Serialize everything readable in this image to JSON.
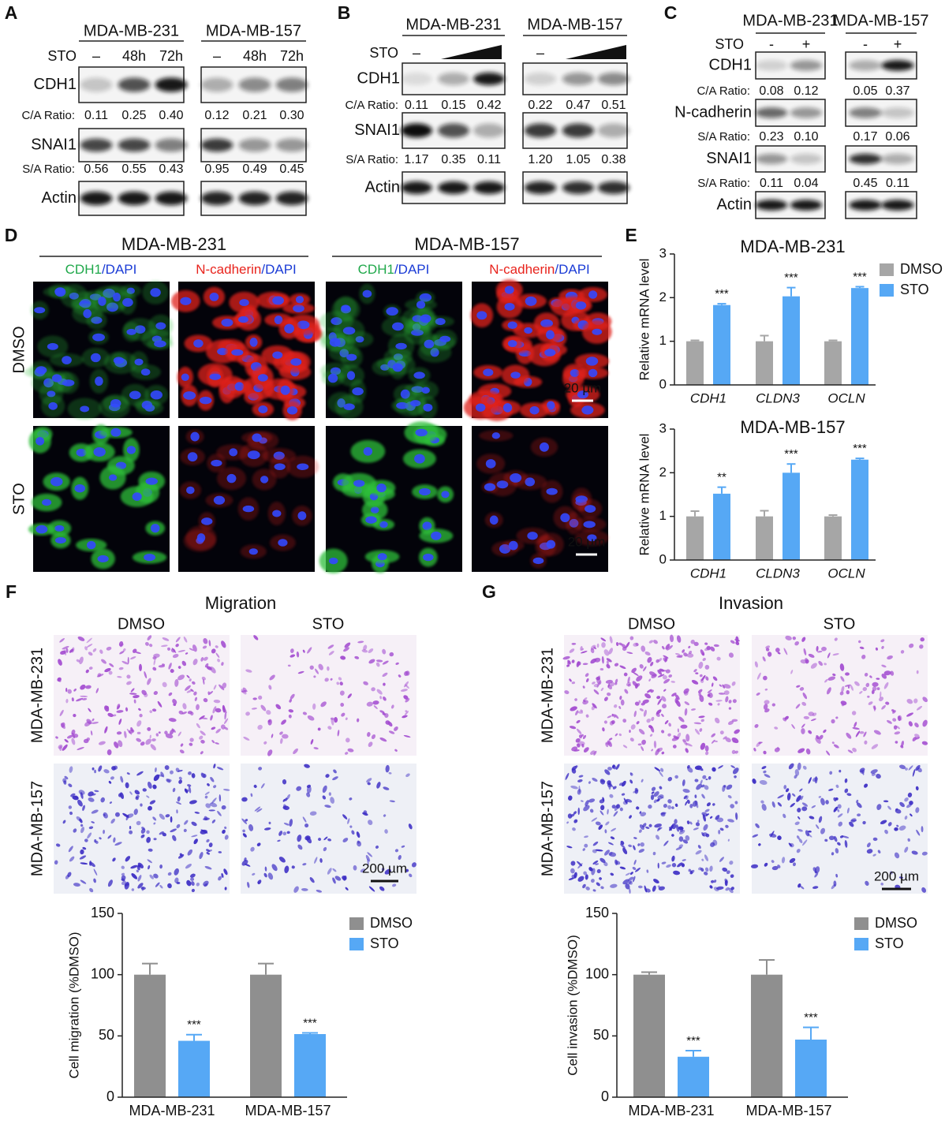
{
  "panel_labels": [
    "A",
    "B",
    "C",
    "D",
    "E",
    "F",
    "G"
  ],
  "blots": [
    {
      "cell_lines": [
        "MDA-MB-231",
        "MDA-MB-157"
      ],
      "treatment": "STO",
      "conditions": [
        [
          "–",
          "48h",
          "72h"
        ],
        [
          "–",
          "48h",
          "72h"
        ]
      ],
      "proteins": [
        "CDH1",
        "SNAI1",
        "Actin"
      ],
      "ratios": [
        {
          "label": "C/A Ratio:",
          "values": [
            [
              "0.11",
              "0.25",
              "0.40"
            ],
            [
              "0.12",
              "0.21",
              "0.30"
            ]
          ]
        },
        {
          "label": "S/A Ratio:",
          "values": [
            [
              "0.56",
              "0.55",
              "0.43"
            ],
            [
              "0.95",
              "0.49",
              "0.45"
            ]
          ]
        }
      ]
    },
    {
      "cell_lines": [
        "MDA-MB-231",
        "MDA-MB-157"
      ],
      "treatment": "STO",
      "conditions": [
        [
          "–"
        ],
        [
          "–"
        ]
      ],
      "proteins": [
        "CDH1",
        "SNAI1",
        "Actin"
      ],
      "ratios": [
        {
          "label": "C/A Ratio:",
          "values": [
            [
              "0.11",
              "0.15",
              "0.42"
            ],
            [
              "0.22",
              "0.47",
              "0.51"
            ]
          ]
        },
        {
          "label": "S/A Ratio:",
          "values": [
            [
              "1.17",
              "0.35",
              "0.11"
            ],
            [
              "1.20",
              "1.05",
              "0.38"
            ]
          ]
        }
      ]
    },
    {
      "cell_lines": [
        "MDA-MB-231",
        "MDA-MB-157"
      ],
      "treatment": "STO",
      "conditions": [
        [
          "-",
          "+"
        ],
        [
          "-",
          "+"
        ]
      ],
      "proteins": [
        "CDH1",
        "N-cadherin",
        "SNAI1",
        "Actin"
      ],
      "ratios": [
        {
          "label": "C/A Ratio:",
          "values": [
            [
              "0.08",
              "0.12"
            ],
            [
              "0.05",
              "0.37"
            ]
          ]
        },
        {
          "label": "S/A Ratio:",
          "values": [
            [
              "0.23",
              "0.10"
            ],
            [
              "0.17",
              "0.06"
            ]
          ]
        },
        {
          "label": "S/A Ratio:",
          "values": [
            [
              "0.11",
              "0.04"
            ],
            [
              "0.45",
              "0.11"
            ]
          ]
        }
      ]
    }
  ],
  "immunofluorescence": {
    "cell_lines": [
      "MDA-MB-231",
      "MDA-MB-157"
    ],
    "stains": [
      [
        "CDH1",
        "/DAPI"
      ],
      [
        "N-cadherin",
        "/DAPI"
      ]
    ],
    "rows": [
      "DMSO",
      "STO"
    ],
    "scale_bars": [
      "20 µm",
      "20 µm"
    ]
  },
  "transwell": [
    {
      "title": "Migration",
      "columns": [
        "DMSO",
        "STO"
      ],
      "rows": [
        "MDA-MB-231",
        "MDA-MB-157"
      ],
      "scale_bar": "200 µm"
    },
    {
      "title": "Invasion",
      "columns": [
        "DMSO",
        "STO"
      ],
      "rows": [
        "MDA-MB-231",
        "MDA-MB-157"
      ],
      "scale_bar": "200 µm"
    }
  ],
  "chart_data": [
    {
      "type": "bar",
      "title": "MDA-MB-231",
      "ylabel": "Relative mRNA level",
      "categories": [
        "CDH1",
        "CLDN3",
        "OCLN"
      ],
      "series": [
        {
          "name": "DMSO",
          "color": "#a6a6a6",
          "values": [
            1,
            1,
            1
          ],
          "errors": [
            0.02,
            0.13,
            0.02
          ]
        },
        {
          "name": "STO",
          "color": "#56a8f5",
          "values": [
            1.83,
            2.03,
            2.22
          ],
          "errors": [
            0.03,
            0.2,
            0.03
          ],
          "annotations": [
            "***",
            "***",
            "***"
          ]
        }
      ],
      "ylim": [
        0,
        3
      ],
      "yticks": [
        0,
        1,
        2,
        3
      ],
      "legend": true
    },
    {
      "type": "bar",
      "title": "MDA-MB-157",
      "ylabel": "Relative mRNA level",
      "categories": [
        "CDH1",
        "CLDN3",
        "OCLN"
      ],
      "series": [
        {
          "name": "DMSO",
          "color": "#a6a6a6",
          "values": [
            1,
            1,
            1
          ],
          "errors": [
            0.12,
            0.13,
            0.03
          ]
        },
        {
          "name": "STO",
          "color": "#56a8f5",
          "values": [
            1.52,
            2.0,
            2.3
          ],
          "errors": [
            0.15,
            0.2,
            0.03
          ],
          "annotations": [
            "**",
            "***",
            "***"
          ]
        }
      ],
      "ylim": [
        0,
        3
      ],
      "yticks": [
        0,
        1,
        2,
        3
      ],
      "legend": false
    },
    {
      "type": "bar",
      "ylabel": "Cell migration (%DMSO)",
      "categories": [
        "MDA-MB-231",
        "MDA-MB-157"
      ],
      "series": [
        {
          "name": "DMSO",
          "color": "#8f8f8f",
          "values": [
            100,
            100
          ],
          "errors": [
            9,
            9
          ]
        },
        {
          "name": "STO",
          "color": "#56a8f5",
          "values": [
            46,
            51.5
          ],
          "errors": [
            5,
            1
          ],
          "annotations": [
            "***",
            "***"
          ]
        }
      ],
      "ylim": [
        0,
        150
      ],
      "yticks": [
        0,
        50,
        100,
        150
      ],
      "legend": true
    },
    {
      "type": "bar",
      "ylabel": "Cell invasion (%DMSO)",
      "categories": [
        "MDA-MB-231",
        "MDA-MB-157"
      ],
      "series": [
        {
          "name": "DMSO",
          "color": "#8f8f8f",
          "values": [
            100,
            100
          ],
          "errors": [
            2,
            12
          ]
        },
        {
          "name": "STO",
          "color": "#56a8f5",
          "values": [
            33,
            47
          ],
          "errors": [
            5,
            10
          ],
          "annotations": [
            "***",
            "***"
          ]
        }
      ],
      "ylim": [
        0,
        150
      ],
      "yticks": [
        0,
        50,
        100,
        150
      ],
      "legend": true
    }
  ]
}
